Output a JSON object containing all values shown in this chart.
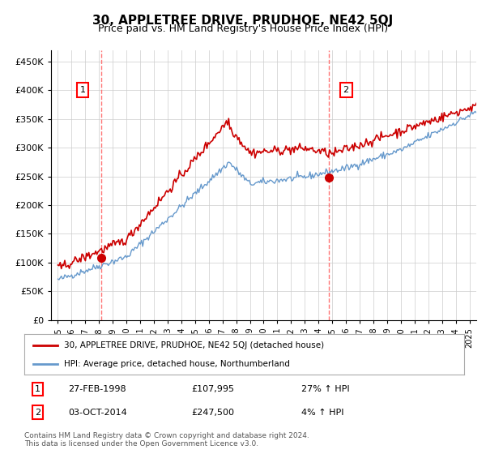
{
  "title": "30, APPLETREE DRIVE, PRUDHOE, NE42 5QJ",
  "subtitle": "Price paid vs. HM Land Registry's House Price Index (HPI)",
  "property_label": "30, APPLETREE DRIVE, PRUDHOE, NE42 5QJ (detached house)",
  "hpi_label": "HPI: Average price, detached house, Northumberland",
  "transaction1": {
    "label": "1",
    "date": "27-FEB-1998",
    "price": "£107,995",
    "change": "27% ↑ HPI"
  },
  "transaction2": {
    "label": "2",
    "date": "03-OCT-2014",
    "price": "£247,500",
    "change": "4% ↑ HPI"
  },
  "footnote1": "Contains HM Land Registry data © Crown copyright and database right 2024.",
  "footnote2": "This data is licensed under the Open Government Licence v3.0.",
  "property_color": "#cc0000",
  "hpi_color": "#6699cc",
  "dashed_line_color": "#ff6666",
  "marker1_date_year": 1998.15,
  "marker1_price": 107995,
  "marker2_date_year": 2014.75,
  "marker2_price": 247500,
  "ylim": [
    0,
    470000
  ],
  "yticks": [
    0,
    50000,
    100000,
    150000,
    200000,
    250000,
    300000,
    350000,
    400000,
    450000
  ],
  "background_color": "#ffffff",
  "grid_color": "#cccccc",
  "start_year": 1995,
  "end_year": 2026,
  "steps_per_year": 12
}
